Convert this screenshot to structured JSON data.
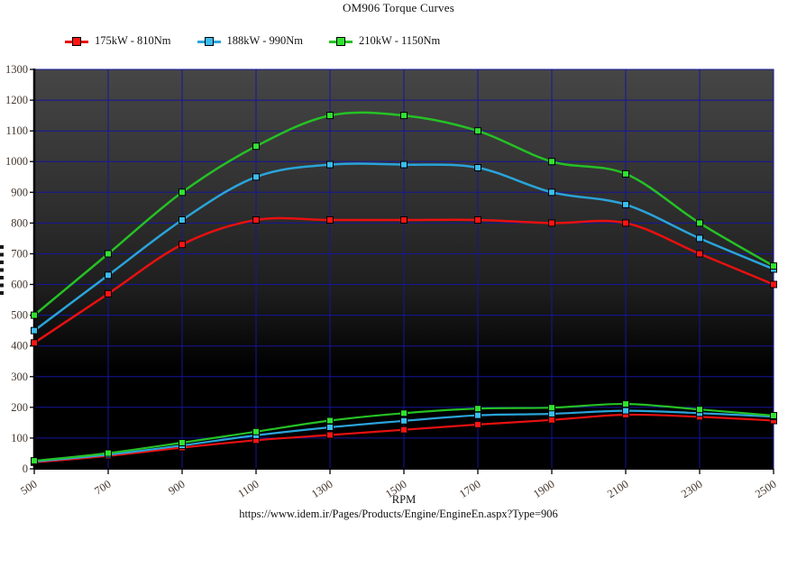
{
  "title": "OM906 Torque Curves",
  "footer": {
    "axis_label": "RPM",
    "source_url": "https://www.idem.ir/Pages/Products/Engine/EngineEn.aspx?Type=906"
  },
  "chart_data": {
    "type": "line",
    "title": "OM906 Torque Curves",
    "xlabel": "RPM",
    "ylabel": "",
    "xlim": [
      500,
      2500
    ],
    "ylim": [
      0,
      1300
    ],
    "grid": true,
    "legend_position": "top-left",
    "x_ticks": [
      500,
      700,
      900,
      1100,
      1300,
      1500,
      1700,
      1900,
      2100,
      2300,
      2500
    ],
    "y_ticks": [
      0,
      100,
      200,
      300,
      400,
      500,
      600,
      700,
      800,
      900,
      1000,
      1100,
      1200,
      1300
    ],
    "x": [
      500,
      700,
      900,
      1100,
      1300,
      1500,
      1700,
      1900,
      2100,
      2300,
      2500
    ],
    "colors": {
      "grid": "#15159b",
      "axis": "#000000",
      "tick_label": "#44372e",
      "plot_bg_top": "#464646",
      "plot_bg_mid": "#1e1e1e",
      "plot_bg_bottom": "#000000",
      "marker_stroke": "#000000"
    },
    "series": [
      {
        "name": "175kW - 810Nm",
        "color": "#e81010",
        "marker_fill": "#ff1414",
        "torque_nm": [
          410,
          570,
          730,
          810,
          810,
          810,
          810,
          800,
          800,
          700,
          600
        ],
        "power_kw": [
          21,
          42,
          69,
          93,
          110,
          127,
          144,
          159,
          176,
          169,
          157
        ]
      },
      {
        "name": "188kW - 990Nm",
        "color": "#2aa4da",
        "marker_fill": "#3bbdee",
        "torque_nm": [
          450,
          630,
          810,
          950,
          990,
          990,
          980,
          900,
          860,
          750,
          650
        ],
        "power_kw": [
          24,
          46,
          76,
          109,
          135,
          156,
          174,
          179,
          189,
          181,
          170
        ]
      },
      {
        "name": "210kW - 1150Nm",
        "color": "#25c125",
        "marker_fill": "#31e231",
        "torque_nm": [
          500,
          700,
          900,
          1050,
          1150,
          1150,
          1100,
          1000,
          960,
          800,
          660
        ],
        "power_kw": [
          26,
          51,
          85,
          121,
          157,
          181,
          196,
          199,
          211,
          193,
          173
        ]
      }
    ]
  }
}
